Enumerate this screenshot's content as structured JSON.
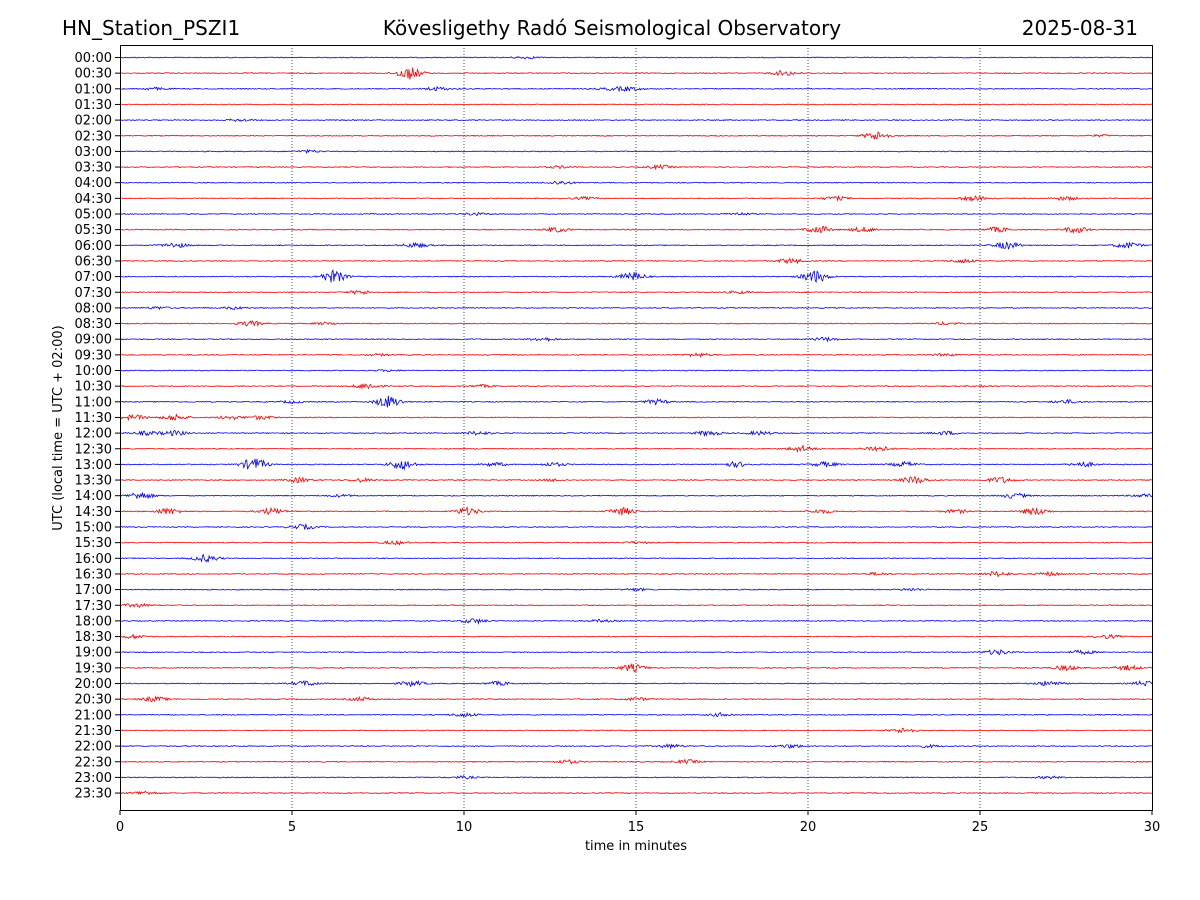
{
  "header": {
    "station": "HN_Station_PSZI1",
    "observatory": "Kövesligethy Radó Seismological Observatory",
    "date": "2025-08-31"
  },
  "chart_data": {
    "type": "line",
    "title": "Kövesligethy Radó Seismological Observatory",
    "xlabel": "time in minutes",
    "ylabel": "UTC (local time = UTC + 02:00)",
    "xlim": [
      0,
      30
    ],
    "x_ticks": [
      "0",
      "5",
      "10",
      "15",
      "20",
      "25",
      "30"
    ],
    "grid": "vertical dotted at 5-minute intervals",
    "trace_colors": [
      "#0000ff",
      "#ff0000"
    ],
    "rows": [
      {
        "label": "00:00",
        "events": [
          [
            11.8,
            1
          ]
        ]
      },
      {
        "label": "00:30",
        "events": [
          [
            8.4,
            5
          ],
          [
            19.3,
            2
          ]
        ]
      },
      {
        "label": "01:00",
        "events": [
          [
            1,
            1
          ],
          [
            9.2,
            1.5
          ],
          [
            14.3,
            1
          ],
          [
            14.8,
            1.5
          ]
        ]
      },
      {
        "label": "01:30",
        "events": []
      },
      {
        "label": "02:00",
        "events": [
          [
            3.5,
            1
          ]
        ]
      },
      {
        "label": "02:30",
        "events": [
          [
            22,
            3.5
          ],
          [
            28.5,
            0.7
          ]
        ]
      },
      {
        "label": "03:00",
        "events": [
          [
            5.5,
            1
          ]
        ]
      },
      {
        "label": "03:30",
        "events": [
          [
            12.8,
            1
          ],
          [
            15.7,
            1.5
          ]
        ]
      },
      {
        "label": "04:00",
        "events": [
          [
            12.8,
            1.5
          ]
        ]
      },
      {
        "label": "04:30",
        "events": [
          [
            13.5,
            1
          ],
          [
            20.8,
            1.5
          ],
          [
            24.8,
            2
          ],
          [
            27.5,
            1.5
          ]
        ]
      },
      {
        "label": "05:00",
        "events": [
          [
            10.3,
            1
          ],
          [
            18,
            1
          ]
        ]
      },
      {
        "label": "05:30",
        "events": [
          [
            12.7,
            2
          ],
          [
            20.3,
            3
          ],
          [
            21.6,
            2
          ],
          [
            25.5,
            2
          ],
          [
            27.8,
            2.5
          ]
        ]
      },
      {
        "label": "06:00",
        "events": [
          [
            1.6,
            2
          ],
          [
            8.6,
            2
          ],
          [
            25.8,
            3
          ],
          [
            29.3,
            2.5
          ]
        ]
      },
      {
        "label": "06:30",
        "events": [
          [
            19.5,
            2
          ],
          [
            24.5,
            1.5
          ]
        ]
      },
      {
        "label": "07:00",
        "events": [
          [
            6.2,
            5
          ],
          [
            14.9,
            3.5
          ],
          [
            20.2,
            5
          ]
        ]
      },
      {
        "label": "07:30",
        "events": [
          [
            7,
            1.5
          ],
          [
            18,
            1
          ]
        ]
      },
      {
        "label": "08:00",
        "events": [
          [
            1.1,
            1
          ],
          [
            3.3,
            1
          ]
        ]
      },
      {
        "label": "08:30",
        "events": [
          [
            3.8,
            2
          ],
          [
            6,
            1
          ],
          [
            24,
            1
          ]
        ]
      },
      {
        "label": "09:00",
        "events": [
          [
            12.3,
            1.5
          ],
          [
            20.5,
            1.5
          ]
        ]
      },
      {
        "label": "09:30",
        "events": [
          [
            7.5,
            0.8
          ],
          [
            16.8,
            1.5
          ],
          [
            24,
            1
          ]
        ]
      },
      {
        "label": "10:00",
        "events": [
          [
            7.8,
            0.6
          ]
        ]
      },
      {
        "label": "10:30",
        "events": [
          [
            7.2,
            2.5
          ],
          [
            10.5,
            1
          ],
          [
            25,
            0.6
          ]
        ]
      },
      {
        "label": "11:00",
        "events": [
          [
            5,
            1
          ],
          [
            7.8,
            5
          ],
          [
            15.6,
            2
          ],
          [
            27.5,
            1.5
          ]
        ]
      },
      {
        "label": "11:30",
        "events": [
          [
            0.4,
            2
          ],
          [
            1.6,
            2.5
          ],
          [
            3.2,
            1.5
          ],
          [
            4.1,
            1.5
          ]
        ]
      },
      {
        "label": "12:00",
        "events": [
          [
            0.8,
            1.5
          ],
          [
            1.6,
            2
          ],
          [
            10.4,
            1.5
          ],
          [
            17.1,
            2
          ],
          [
            18.6,
            1.5
          ],
          [
            24,
            1.5
          ]
        ]
      },
      {
        "label": "12:30",
        "events": [
          [
            19.8,
            2.5
          ],
          [
            22,
            2.5
          ]
        ]
      },
      {
        "label": "13:00",
        "events": [
          [
            3.9,
            5
          ],
          [
            8.2,
            4
          ],
          [
            10.9,
            1.5
          ],
          [
            12.6,
            1.5
          ],
          [
            17.9,
            2
          ],
          [
            20.5,
            2
          ],
          [
            22.8,
            2
          ],
          [
            28,
            2
          ]
        ]
      },
      {
        "label": "13:30",
        "events": [
          [
            5.2,
            2
          ],
          [
            7,
            1.5
          ],
          [
            12.6,
            1
          ],
          [
            23.1,
            3
          ],
          [
            25.6,
            2.5
          ]
        ]
      },
      {
        "label": "14:00",
        "events": [
          [
            0.6,
            3
          ],
          [
            6.4,
            1
          ],
          [
            26,
            2
          ],
          [
            29.8,
            1.5
          ]
        ]
      },
      {
        "label": "14:30",
        "events": [
          [
            1.4,
            2.5
          ],
          [
            4.4,
            2.5
          ],
          [
            10.1,
            3
          ],
          [
            14.6,
            3
          ],
          [
            20.4,
            1.5
          ],
          [
            24.3,
            1.5
          ],
          [
            26.6,
            3
          ]
        ]
      },
      {
        "label": "15:00",
        "events": [
          [
            5.3,
            2
          ]
        ]
      },
      {
        "label": "15:30",
        "events": [
          [
            8,
            1.5
          ],
          [
            15,
            0.8
          ]
        ]
      },
      {
        "label": "16:00",
        "events": [
          [
            2.5,
            3
          ]
        ]
      },
      {
        "label": "16:30",
        "events": [
          [
            22,
            1
          ],
          [
            25.5,
            2
          ],
          [
            27,
            1.5
          ]
        ]
      },
      {
        "label": "17:00",
        "events": [
          [
            15,
            1
          ],
          [
            23,
            1
          ]
        ]
      },
      {
        "label": "17:30",
        "events": [
          [
            0.5,
            1.5
          ]
        ]
      },
      {
        "label": "18:00",
        "events": [
          [
            10.3,
            2
          ],
          [
            14,
            1
          ]
        ]
      },
      {
        "label": "18:30",
        "events": [
          [
            0.4,
            1.5
          ],
          [
            28.7,
            1.5
          ]
        ]
      },
      {
        "label": "19:00",
        "events": [
          [
            25.5,
            2
          ],
          [
            28,
            1.5
          ]
        ]
      },
      {
        "label": "19:30",
        "events": [
          [
            14.9,
            3
          ],
          [
            27.5,
            2
          ],
          [
            29.3,
            2
          ]
        ]
      },
      {
        "label": "20:00",
        "events": [
          [
            5.4,
            2
          ],
          [
            8.5,
            2
          ],
          [
            11,
            1.5
          ],
          [
            27,
            2
          ],
          [
            29.8,
            2
          ]
        ]
      },
      {
        "label": "20:30",
        "events": [
          [
            1,
            2
          ],
          [
            7,
            1.5
          ],
          [
            15,
            1.2
          ]
        ]
      },
      {
        "label": "21:00",
        "events": [
          [
            10,
            1.5
          ],
          [
            17.5,
            1.5
          ]
        ]
      },
      {
        "label": "21:30",
        "events": [
          [
            22.8,
            2
          ]
        ]
      },
      {
        "label": "22:00",
        "events": [
          [
            16,
            1.5
          ],
          [
            19.5,
            1.5
          ],
          [
            23.5,
            1
          ]
        ]
      },
      {
        "label": "22:30",
        "events": [
          [
            13,
            1.5
          ],
          [
            16.5,
            1.5
          ]
        ]
      },
      {
        "label": "23:00",
        "events": [
          [
            10,
            1
          ],
          [
            27,
            1
          ]
        ]
      },
      {
        "label": "23:30",
        "events": [
          [
            0.7,
            1.5
          ]
        ]
      }
    ]
  }
}
